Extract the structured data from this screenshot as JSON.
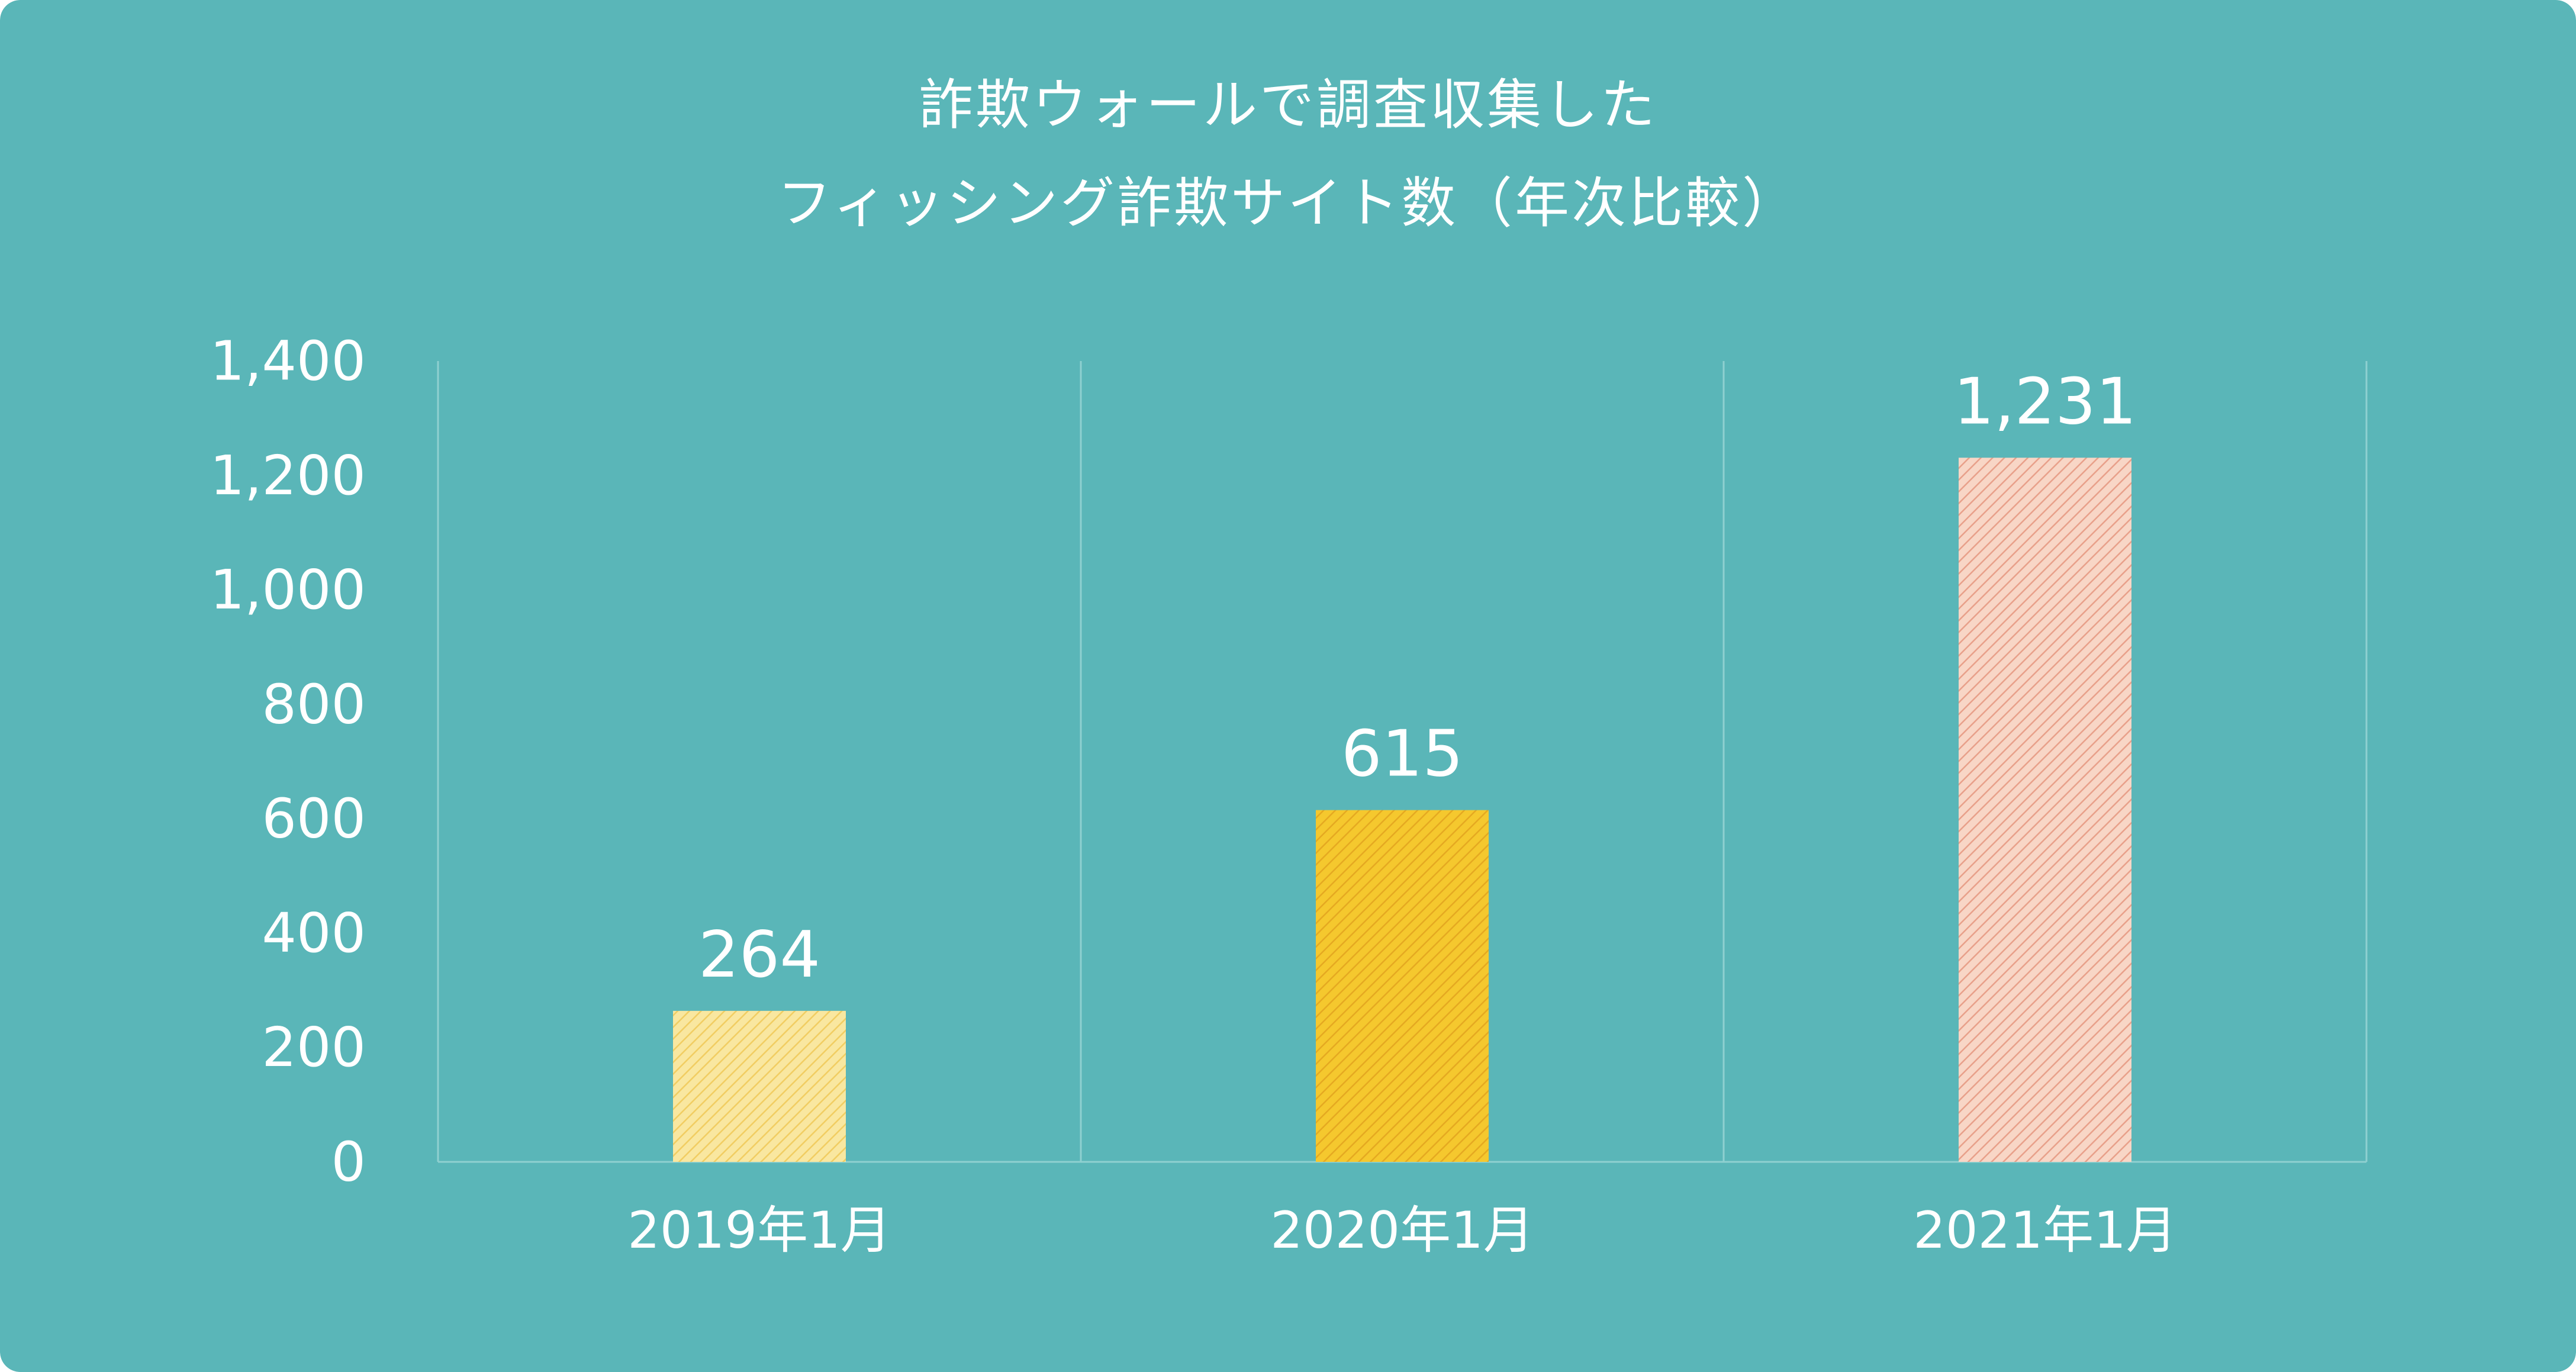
{
  "chart_data": {
    "type": "bar",
    "title": [
      "詐欺ウォールで調査収集した",
      "フィッシング詐欺サイト数（年次比較）"
    ],
    "categories": [
      "2019年1月",
      "2020年1月",
      "2021年1月"
    ],
    "values": [
      264,
      615,
      1231
    ],
    "value_labels": [
      "264",
      "615",
      "1,231"
    ],
    "ylim": [
      0,
      1400
    ],
    "yticks": [
      0,
      200,
      400,
      600,
      800,
      1000,
      1200,
      1400
    ],
    "ytick_labels": [
      "0",
      "200",
      "400",
      "600",
      "800",
      "1,000",
      "1,200",
      "1,400"
    ],
    "xlabel": "",
    "ylabel": "",
    "grid": "vertical separators only",
    "legend": "none",
    "bar_colors": [
      "#f9e7a0",
      "#f5c82e",
      "#f8d6c6"
    ],
    "bar_stripe_colors": [
      "#f1cd62",
      "#e5a921",
      "#e8a08a"
    ]
  },
  "colors": {
    "background": "#5ab6b8",
    "text": "#ffffff",
    "axis": "#8fd0d0"
  }
}
